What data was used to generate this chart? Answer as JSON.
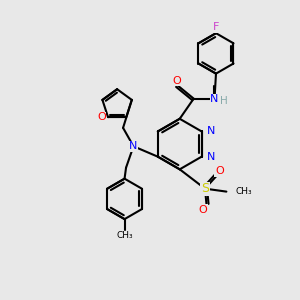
{
  "bg_color": "#e8e8e8",
  "atom_colors": {
    "N": "#0000ff",
    "O": "#ff0000",
    "F": "#cc44cc",
    "S": "#cccc00",
    "H": "#88aaaa"
  },
  "bond_color": "#000000",
  "bond_width": 1.5
}
